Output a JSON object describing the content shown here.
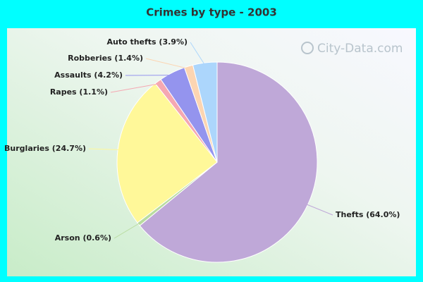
{
  "chart_data": {
    "type": "pie",
    "title": "Crimes by type - 2003",
    "watermark": "City-Data.com",
    "values": [
      64.0,
      0.6,
      24.7,
      1.1,
      4.2,
      1.4,
      3.9
    ],
    "value_labels": [
      "Thefts (64.0%)",
      "Arson (0.6%)",
      "Burglaries (24.7%)",
      "Rapes (1.1%)",
      "Assaults (4.2%)",
      "Robberies (1.4%)",
      "Auto thefts (3.9%)"
    ],
    "colors": [
      "#bfa8d8",
      "#b9dca0",
      "#fff899",
      "#f5a8b2",
      "#9494ee",
      "#fcd5b2",
      "#acd6fc"
    ]
  }
}
